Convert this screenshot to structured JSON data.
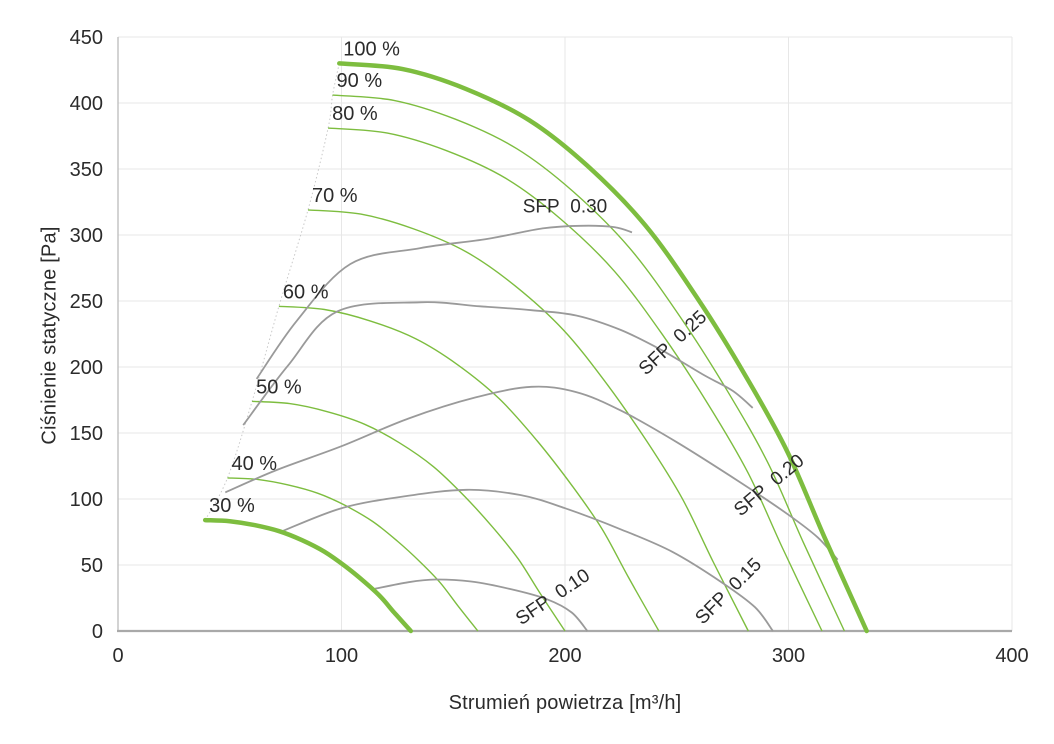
{
  "axes": {
    "x": {
      "title": "Strumień powietrza [m³/h]",
      "min": 0,
      "max": 400,
      "ticks": [
        0,
        100,
        200,
        300,
        400
      ]
    },
    "y": {
      "title": "Ciśnienie statyczne [Pa]",
      "min": 0,
      "max": 450,
      "ticks": [
        0,
        50,
        100,
        150,
        200,
        250,
        300,
        350,
        400,
        450
      ]
    }
  },
  "colors": {
    "green": "#7dbd3f",
    "gray": "#9a9a9a",
    "grid": "#e7e7e7",
    "axis_bottom": "#a9a9a9",
    "axis_left": "#c0c0c0",
    "dashed": "#c9c9c9",
    "text": "#2b2b2b"
  },
  "chart_data": {
    "type": "line",
    "title": "",
    "xlabel": "Strumień powietrza [m³/h]",
    "ylabel": "Ciśnienie statyczne [Pa]",
    "xlim": [
      0,
      400
    ],
    "ylim": [
      0,
      450
    ],
    "grid": true,
    "legend": "none",
    "speed_curves": [
      {
        "label": "30 %",
        "percent": 30,
        "start": [
          39,
          84
        ],
        "end_flow": 131,
        "thick": true
      },
      {
        "label": "40 %",
        "percent": 40,
        "start": [
          49,
          116
        ],
        "end_flow": 161,
        "thick": false
      },
      {
        "label": "50 %",
        "percent": 50,
        "start": [
          60,
          174
        ],
        "end_flow": 200,
        "thick": false
      },
      {
        "label": "60 %",
        "percent": 60,
        "start": [
          72,
          246
        ],
        "end_flow": 242,
        "thick": false
      },
      {
        "label": "70 %",
        "percent": 70,
        "start": [
          85,
          319
        ],
        "end_flow": 282,
        "thick": false
      },
      {
        "label": "80 %",
        "percent": 80,
        "start": [
          94,
          381
        ],
        "end_flow": 315,
        "thick": false
      },
      {
        "label": "90 %",
        "percent": 90,
        "start": [
          96,
          406
        ],
        "end_flow": 325,
        "thick": false
      },
      {
        "label": "100 %",
        "percent": 100,
        "start": [
          99,
          430
        ],
        "end_flow": 335,
        "thick": true
      }
    ],
    "speed_curve_profile": {
      "r": [
        0,
        0.12,
        0.24,
        0.36,
        0.47,
        0.58,
        0.68,
        0.77,
        0.85,
        0.92,
        1
      ],
      "f": [
        1,
        0.99,
        0.955,
        0.9,
        0.82,
        0.715,
        0.585,
        0.45,
        0.315,
        0.165,
        0
      ]
    },
    "sfp_curves": [
      {
        "label": "SFP  0.10",
        "value": 0.1,
        "label_pos": [
          196,
          22
        ],
        "label_angle": -34,
        "points": [
          [
            115,
            32
          ],
          [
            130,
            37
          ],
          [
            142,
            39
          ],
          [
            158,
            37.5
          ],
          [
            175,
            32
          ],
          [
            192,
            24
          ],
          [
            203,
            14
          ],
          [
            210,
            0
          ]
        ]
      },
      {
        "label": "SFP  0.15",
        "value": 0.15,
        "label_pos": [
          275,
          27
        ],
        "label_angle": -45,
        "points": [
          [
            74,
            76
          ],
          [
            100,
            93
          ],
          [
            128,
            102
          ],
          [
            156,
            107
          ],
          [
            180,
            103
          ],
          [
            200,
            93
          ],
          [
            225,
            77
          ],
          [
            248,
            60
          ],
          [
            270,
            37
          ],
          [
            285,
            18
          ],
          [
            293,
            0
          ]
        ]
      },
      {
        "label": "SFP  0.20",
        "value": 0.2,
        "label_pos": [
          293,
          107
        ],
        "label_angle": -40,
        "points": [
          [
            48,
            105
          ],
          [
            71,
            122
          ],
          [
            100,
            140
          ],
          [
            130,
            161
          ],
          [
            160,
            177
          ],
          [
            185,
            185
          ],
          [
            205,
            181
          ],
          [
            225,
            167
          ],
          [
            250,
            143
          ],
          [
            279,
            112
          ],
          [
            300,
            88
          ],
          [
            313,
            71
          ],
          [
            322,
            54
          ]
        ]
      },
      {
        "label": "SFP  0.25",
        "value": 0.25,
        "label_pos": [
          250,
          215
        ],
        "label_angle": -43,
        "points": [
          [
            56,
            156
          ],
          [
            76,
            201
          ],
          [
            98,
            242
          ],
          [
            135,
            249
          ],
          [
            162,
            246
          ],
          [
            185,
            243
          ],
          [
            205,
            239
          ],
          [
            225,
            228
          ],
          [
            243,
            213
          ],
          [
            262,
            194
          ],
          [
            275,
            182
          ],
          [
            284,
            169
          ]
        ]
      },
      {
        "label": "SFP  0.30",
        "value": 0.3,
        "label_pos": [
          200,
          317
        ],
        "label_angle": 0,
        "points": [
          [
            62,
            191
          ],
          [
            80,
            235
          ],
          [
            104,
            278
          ],
          [
            135,
            290
          ],
          [
            165,
            297
          ],
          [
            190,
            305
          ],
          [
            207,
            307
          ],
          [
            222,
            306
          ],
          [
            230,
            302
          ]
        ]
      }
    ],
    "min_flow_line": {
      "style": "dashed",
      "points": [
        [
          39,
          84
        ],
        [
          49,
          116
        ],
        [
          60,
          174
        ],
        [
          72,
          246
        ],
        [
          85,
          319
        ],
        [
          94,
          381
        ],
        [
          96,
          406
        ],
        [
          99,
          430
        ]
      ]
    }
  }
}
